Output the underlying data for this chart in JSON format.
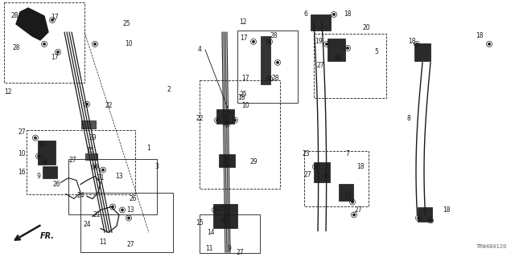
{
  "part_code": "TRW4B4120",
  "bg_color": "#ffffff",
  "line_color": "#1a1a1a",
  "fig_width": 6.4,
  "fig_height": 3.2,
  "dpi": 100
}
